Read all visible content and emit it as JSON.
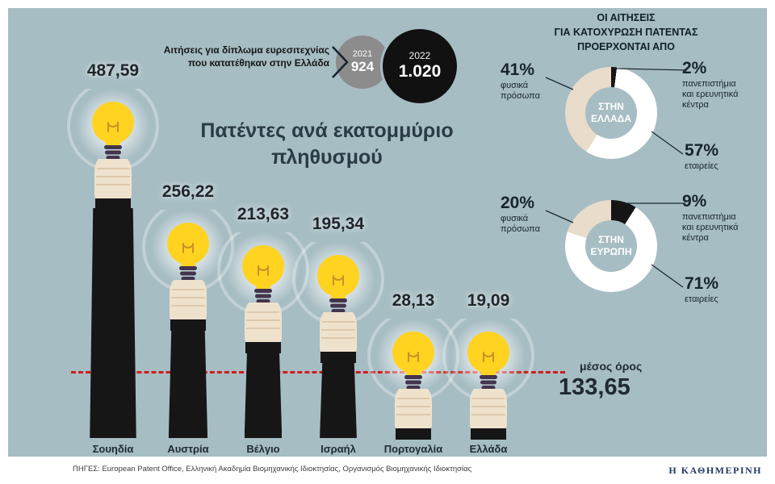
{
  "colors": {
    "panel_bg": "#a6bdc3",
    "ink": "#161616",
    "title_color": "#2a3b46",
    "gray_circle": "#8c8c8c",
    "black_circle": "#111111",
    "bulb_yellow": "#ffd320",
    "hand": "#efe2cd",
    "average_red": "#cf1d1d",
    "brand_blue": "#223a66"
  },
  "top_note": {
    "lines": [
      "Αιτήσεις για δίπλωμα ευρεσιτεχνίας",
      "που κατατέθηκαν στην Ελλάδα"
    ],
    "circles": [
      {
        "year": "2021",
        "value": "924"
      },
      {
        "year": "2022",
        "value": "1.020"
      }
    ]
  },
  "main_title": {
    "lines": [
      "Πατέντες ανά εκατομμύριο",
      "πληθυσμού"
    ]
  },
  "right_header": {
    "lines": [
      "ΟΙ ΑΙΤΗΣΕΙΣ",
      "ΓΙΑ ΚΑΤΟΧΥΡΩΣΗ ΠΑΤΕΝΤΑΣ",
      "ΠΡΟΕΡΧΟΝΤΑΙ ΑΠΟ"
    ]
  },
  "average": {
    "caption": "μέσος όρος",
    "value_label": "133,65",
    "value": 133.65
  },
  "chart_data": [
    {
      "type": "bar",
      "title": "Πατέντες ανά εκατομμύριο πληθυσμού",
      "categories": [
        "Σουηδία",
        "Αυστρία",
        "Βέλγιο",
        "Ισραήλ",
        "Πορτογαλία",
        "Ελλάδα"
      ],
      "values": [
        487.59,
        256.22,
        213.63,
        195.34,
        28.13,
        19.09
      ],
      "value_labels": [
        "487,59",
        "256,22",
        "213,63",
        "195,34",
        "28,13",
        "19,09"
      ],
      "average": 133.65,
      "average_caption": "μέσος όρος",
      "average_label": "133,65",
      "legend_position": "none",
      "grid": false
    },
    {
      "type": "pie",
      "title": "ΣΤΗΝ ΕΛΛΑΔΑ",
      "slices": [
        {
          "label": "πανεπιστήμια και ερευνητικά κέντρα",
          "pct": 2,
          "pct_label": "2%",
          "color": "#151515"
        },
        {
          "label": "εταιρείες",
          "pct": 57,
          "pct_label": "57%",
          "color": "#ffffff"
        },
        {
          "label": "φυσικά πρόσωπα",
          "pct": 41,
          "pct_label": "41%",
          "color": "#e9dcca"
        }
      ]
    },
    {
      "type": "pie",
      "title": "ΣΤΗΝ ΕΥΡΩΠΗ",
      "slices": [
        {
          "label": "πανεπιστήμια και ερευνητικά κέντρα",
          "pct": 9,
          "pct_label": "9%",
          "color": "#151515"
        },
        {
          "label": "εταιρείες",
          "pct": 71,
          "pct_label": "71%",
          "color": "#ffffff"
        },
        {
          "label": "φυσικά πρόσωπα",
          "pct": 20,
          "pct_label": "20%",
          "color": "#e9dcca"
        }
      ]
    }
  ],
  "sources": "ΠΗΓΕΣ: European Patent Office, Ελληνική Ακαδημία Βιομηχανικής Ιδιοκτησίας, Οργανισμός Βιομηχανικής Ιδιοκτησίας",
  "brand": "Η ΚΑΘΗΜΕΡΙΝΗ"
}
